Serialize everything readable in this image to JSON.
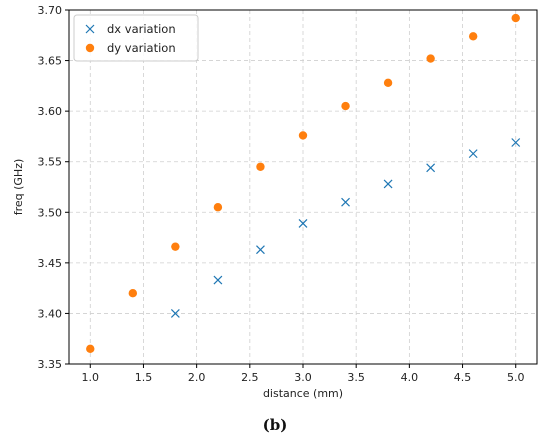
{
  "chart_data": {
    "type": "scatter",
    "title": "",
    "xlabel": "distance (mm)",
    "ylabel": "freq (GHz)",
    "xlim": [
      0.8,
      5.2
    ],
    "ylim": [
      3.35,
      3.7
    ],
    "xticks": [
      1.0,
      1.5,
      2.0,
      2.5,
      3.0,
      3.5,
      4.0,
      4.5,
      5.0
    ],
    "xtick_labels": [
      "1.0",
      "1.5",
      "2.0",
      "2.5",
      "3.0",
      "3.5",
      "4.0",
      "4.5",
      "5.0"
    ],
    "yticks": [
      3.35,
      3.4,
      3.45,
      3.5,
      3.55,
      3.6,
      3.65,
      3.7
    ],
    "ytick_labels": [
      "3.35",
      "3.40",
      "3.45",
      "3.50",
      "3.55",
      "3.60",
      "3.65",
      "3.70"
    ],
    "grid": true,
    "legend_position": "top-left",
    "series": [
      {
        "name": "dx variation",
        "marker": "x",
        "color": "#1f77b4",
        "x": [
          1.8,
          2.2,
          2.6,
          3.0,
          3.4,
          3.8,
          4.2,
          4.6,
          5.0
        ],
        "y": [
          3.4,
          3.433,
          3.463,
          3.489,
          3.51,
          3.528,
          3.544,
          3.558,
          3.569
        ]
      },
      {
        "name": "dy variation",
        "marker": "circle",
        "color": "#ff7f0e",
        "x": [
          1.0,
          1.4,
          1.8,
          2.2,
          2.6,
          3.0,
          3.4,
          3.8,
          4.2,
          4.6,
          5.0
        ],
        "y": [
          3.365,
          3.42,
          3.466,
          3.505,
          3.545,
          3.576,
          3.605,
          3.628,
          3.652,
          3.674,
          3.692
        ]
      }
    ]
  },
  "caption": {
    "label": "(b)"
  }
}
